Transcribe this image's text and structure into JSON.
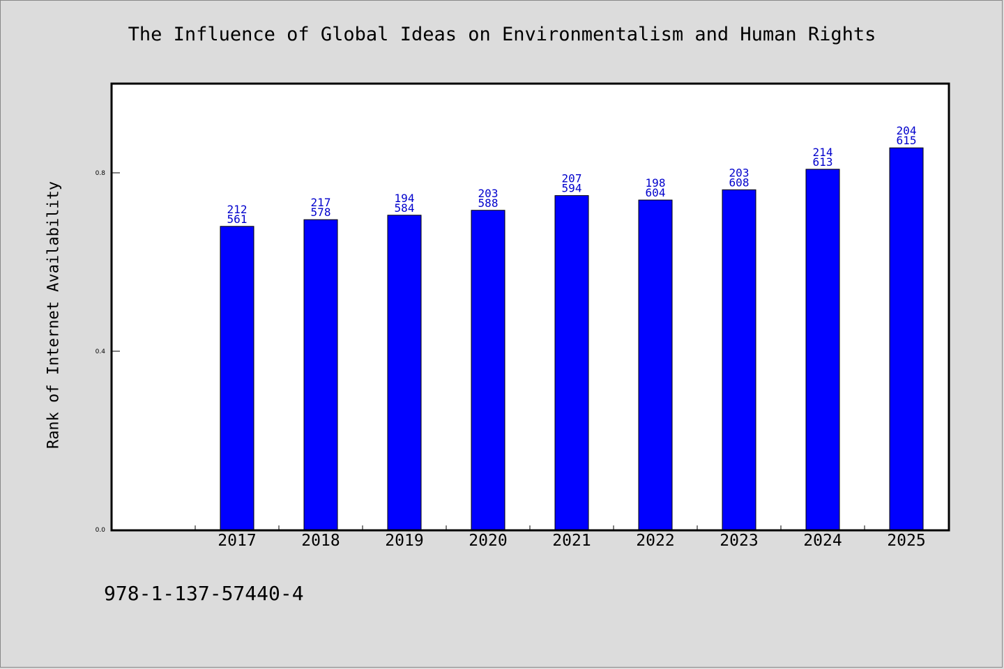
{
  "chart_data": {
    "type": "bar",
    "title": "The Influence of Global Ideas on Environmentalism and Human Rights",
    "ylabel": "Rank of Internet Availability",
    "xlabel": "",
    "categories": [
      "2017",
      "2018",
      "2019",
      "2020",
      "2021",
      "2022",
      "2023",
      "2024",
      "2025"
    ],
    "values": [
      0.68,
      0.695,
      0.705,
      0.716,
      0.749,
      0.739,
      0.762,
      0.808,
      0.856
    ],
    "data_labels_top": [
      "212",
      "217",
      "194",
      "203",
      "207",
      "198",
      "203",
      "214",
      "204"
    ],
    "data_labels_bottom": [
      "561",
      "578",
      "584",
      "588",
      "594",
      "604",
      "608",
      "613",
      "615"
    ],
    "yticks": [
      "0.0",
      "0.4",
      "0.8"
    ],
    "ylim": [
      0,
      1.0
    ],
    "grid": false,
    "colors": {
      "bar": "#0000ff",
      "bar_edge": "#000000",
      "data_label": "#0000cc"
    }
  },
  "footer_text": "978-1-137-57440-4"
}
